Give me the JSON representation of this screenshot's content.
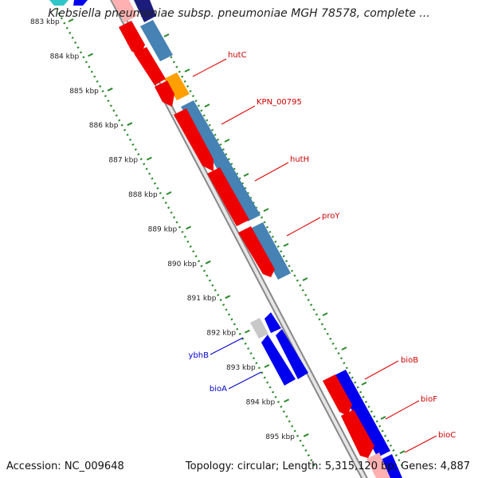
{
  "title": "Klebsiella pneumoniae subsp. pneumoniae MGH 78578, complete ...",
  "footer": {
    "accession": "Accession: NC_009648",
    "summary": "Topology: circular; Length: 5,315,120 bp; Genes: 4,887"
  },
  "ruler": [
    {
      "pos": 883,
      "label": "883 kbp"
    },
    {
      "pos": 884,
      "label": "884 kbp"
    },
    {
      "pos": 885,
      "label": "885 kbp"
    },
    {
      "pos": 886,
      "label": "886 kbp"
    },
    {
      "pos": 887,
      "label": "887 kbp"
    },
    {
      "pos": 888,
      "label": "888 kbp"
    },
    {
      "pos": 889,
      "label": "889 kbp"
    },
    {
      "pos": 890,
      "label": "890 kbp"
    },
    {
      "pos": 891,
      "label": "891 kbp"
    },
    {
      "pos": 892,
      "label": "892 kbp"
    },
    {
      "pos": 893,
      "label": "893 kbp"
    },
    {
      "pos": 894,
      "label": "894 kbp"
    },
    {
      "pos": 895,
      "label": "895 kbp"
    }
  ],
  "gene_labels": [
    {
      "name": "hutC",
      "color": "#cc0000"
    },
    {
      "name": "KPN_00795",
      "color": "#cc0000"
    },
    {
      "name": "hutH",
      "color": "#cc0000"
    },
    {
      "name": "proY",
      "color": "#cc0000"
    },
    {
      "name": "bioB",
      "color": "#cc0000"
    },
    {
      "name": "bioF",
      "color": "#cc0000"
    },
    {
      "name": "bioC",
      "color": "#cc0000"
    },
    {
      "name": "ybhB",
      "color": "#0000cc"
    },
    {
      "name": "bioA",
      "color": "#0000cc"
    }
  ],
  "colors": {
    "forward_cds": "#ff0000",
    "reverse_cds": "#0000ee",
    "steelblue": "#4682b4",
    "orange": "#ffa000",
    "backbone": "#808080",
    "tick_major": "#228b22"
  }
}
